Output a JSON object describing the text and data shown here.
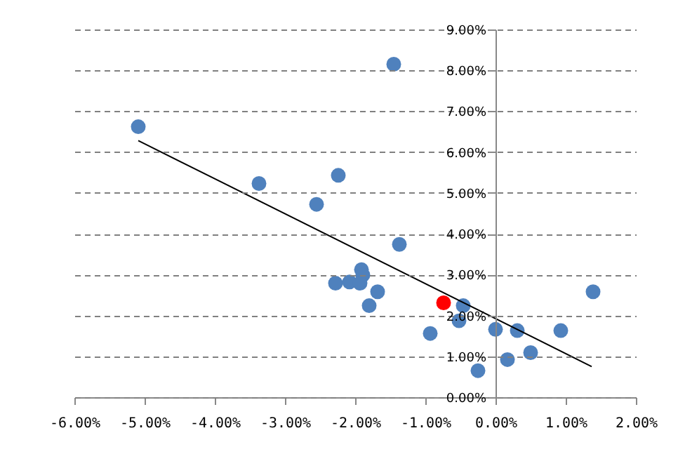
{
  "chart_data": {
    "type": "scatter",
    "grid": "y",
    "xlim": [
      -6,
      2
    ],
    "ylim": [
      0,
      9
    ],
    "xticks": [
      {
        "value": -6,
        "label": "-6.00%"
      },
      {
        "value": -5,
        "label": "-5.00%"
      },
      {
        "value": -4,
        "label": "-4.00%"
      },
      {
        "value": -3,
        "label": "-3.00%"
      },
      {
        "value": -2,
        "label": "-2.00%"
      },
      {
        "value": -1,
        "label": "-1.00%"
      },
      {
        "value": 0,
        "label": "0.00%"
      },
      {
        "value": 1,
        "label": "1.00%"
      },
      {
        "value": 2,
        "label": "2.00%"
      }
    ],
    "yticks": [
      {
        "value": 0,
        "label": "0.00%"
      },
      {
        "value": 1,
        "label": "1.00%"
      },
      {
        "value": 2,
        "label": "2.00%"
      },
      {
        "value": 3,
        "label": "3.00%"
      },
      {
        "value": 4,
        "label": "4.00%"
      },
      {
        "value": 5,
        "label": "5.00%"
      },
      {
        "value": 6,
        "label": "6.00%"
      },
      {
        "value": 7,
        "label": "7.00%"
      },
      {
        "value": 8,
        "label": "8.00%"
      },
      {
        "value": 9,
        "label": "9.00%"
      }
    ],
    "series": [
      {
        "marker": "circle",
        "color": "#4f81bd",
        "x": [
          -5.09,
          -1.45,
          -3.37,
          -2.24,
          -2.55,
          -1.37,
          -1.91,
          -1.89,
          -2.28,
          -2.08,
          -1.93,
          -1.68,
          -1.8,
          -0.46,
          -0.52,
          -0.93,
          -0.25,
          0,
          0.31,
          0.17,
          0.5,
          0.93,
          1.39
        ],
        "values": [
          6.62,
          8.15,
          5.23,
          5.43,
          4.72,
          3.74,
          3.12,
          2.99,
          2.79,
          2.82,
          2.79,
          2.58,
          2.24,
          2.24,
          1.87,
          1.56,
          0.65,
          1.66,
          1.63,
          0.92,
          1.09,
          1.63,
          2.58
        ]
      },
      {
        "marker": "circle",
        "color": "#ff0000",
        "x": [
          -0.74
        ],
        "values": [
          2.31
        ]
      },
      {
        "type": "line",
        "marker": "none",
        "color": "#000000",
        "x": [
          -5.09,
          1.37
        ],
        "values": [
          6.28,
          0.75
        ]
      }
    ]
  }
}
